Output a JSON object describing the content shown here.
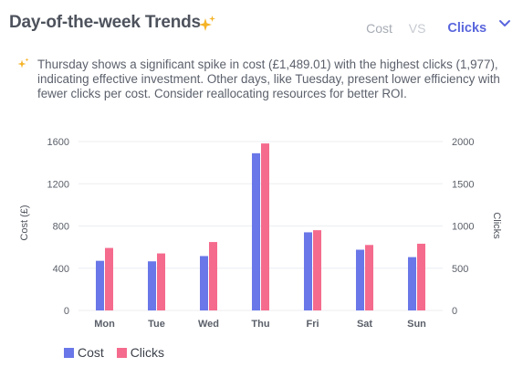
{
  "header": {
    "title": "Day-of-the-week Trends",
    "cost_label": "Cost",
    "vs_label": "VS",
    "clicks_label": "Clicks"
  },
  "insight": {
    "text": "Thursday shows a significant spike in cost (£1,489.01) with the highest clicks (1,977), indicating effective investment. Other days, like Tuesday, present lower efficiency with fewer clicks per cost. Consider reallocating resources for better ROI."
  },
  "colors": {
    "cost": "#6977e8",
    "clicks": "#f56b8d",
    "accent": "#5a66dd",
    "sparkle": "#f5b326",
    "grid": "#eceef1",
    "tick": "#5a5f68"
  },
  "legend": {
    "cost": "Cost",
    "clicks": "Clicks"
  },
  "chart_data": {
    "type": "bar",
    "categories": [
      "Mon",
      "Tue",
      "Wed",
      "Thu",
      "Fri",
      "Sat",
      "Sun"
    ],
    "series": [
      {
        "name": "Cost",
        "axis": "left",
        "values": [
          470,
          465,
          515,
          1489.01,
          740,
          575,
          505
        ]
      },
      {
        "name": "Clicks",
        "axis": "right",
        "values": [
          740,
          675,
          810,
          1977,
          950,
          775,
          790
        ]
      }
    ],
    "y_left": {
      "label": "Cost (£)",
      "ylim": [
        0,
        1600
      ],
      "ticks": [
        0,
        400,
        800,
        1200,
        1600
      ]
    },
    "y_right": {
      "label": "Clicks",
      "ylim": [
        0,
        2000
      ],
      "ticks": [
        0,
        500,
        1000,
        1500,
        2000
      ]
    },
    "grid": true,
    "legend_position": "bottom-left"
  }
}
